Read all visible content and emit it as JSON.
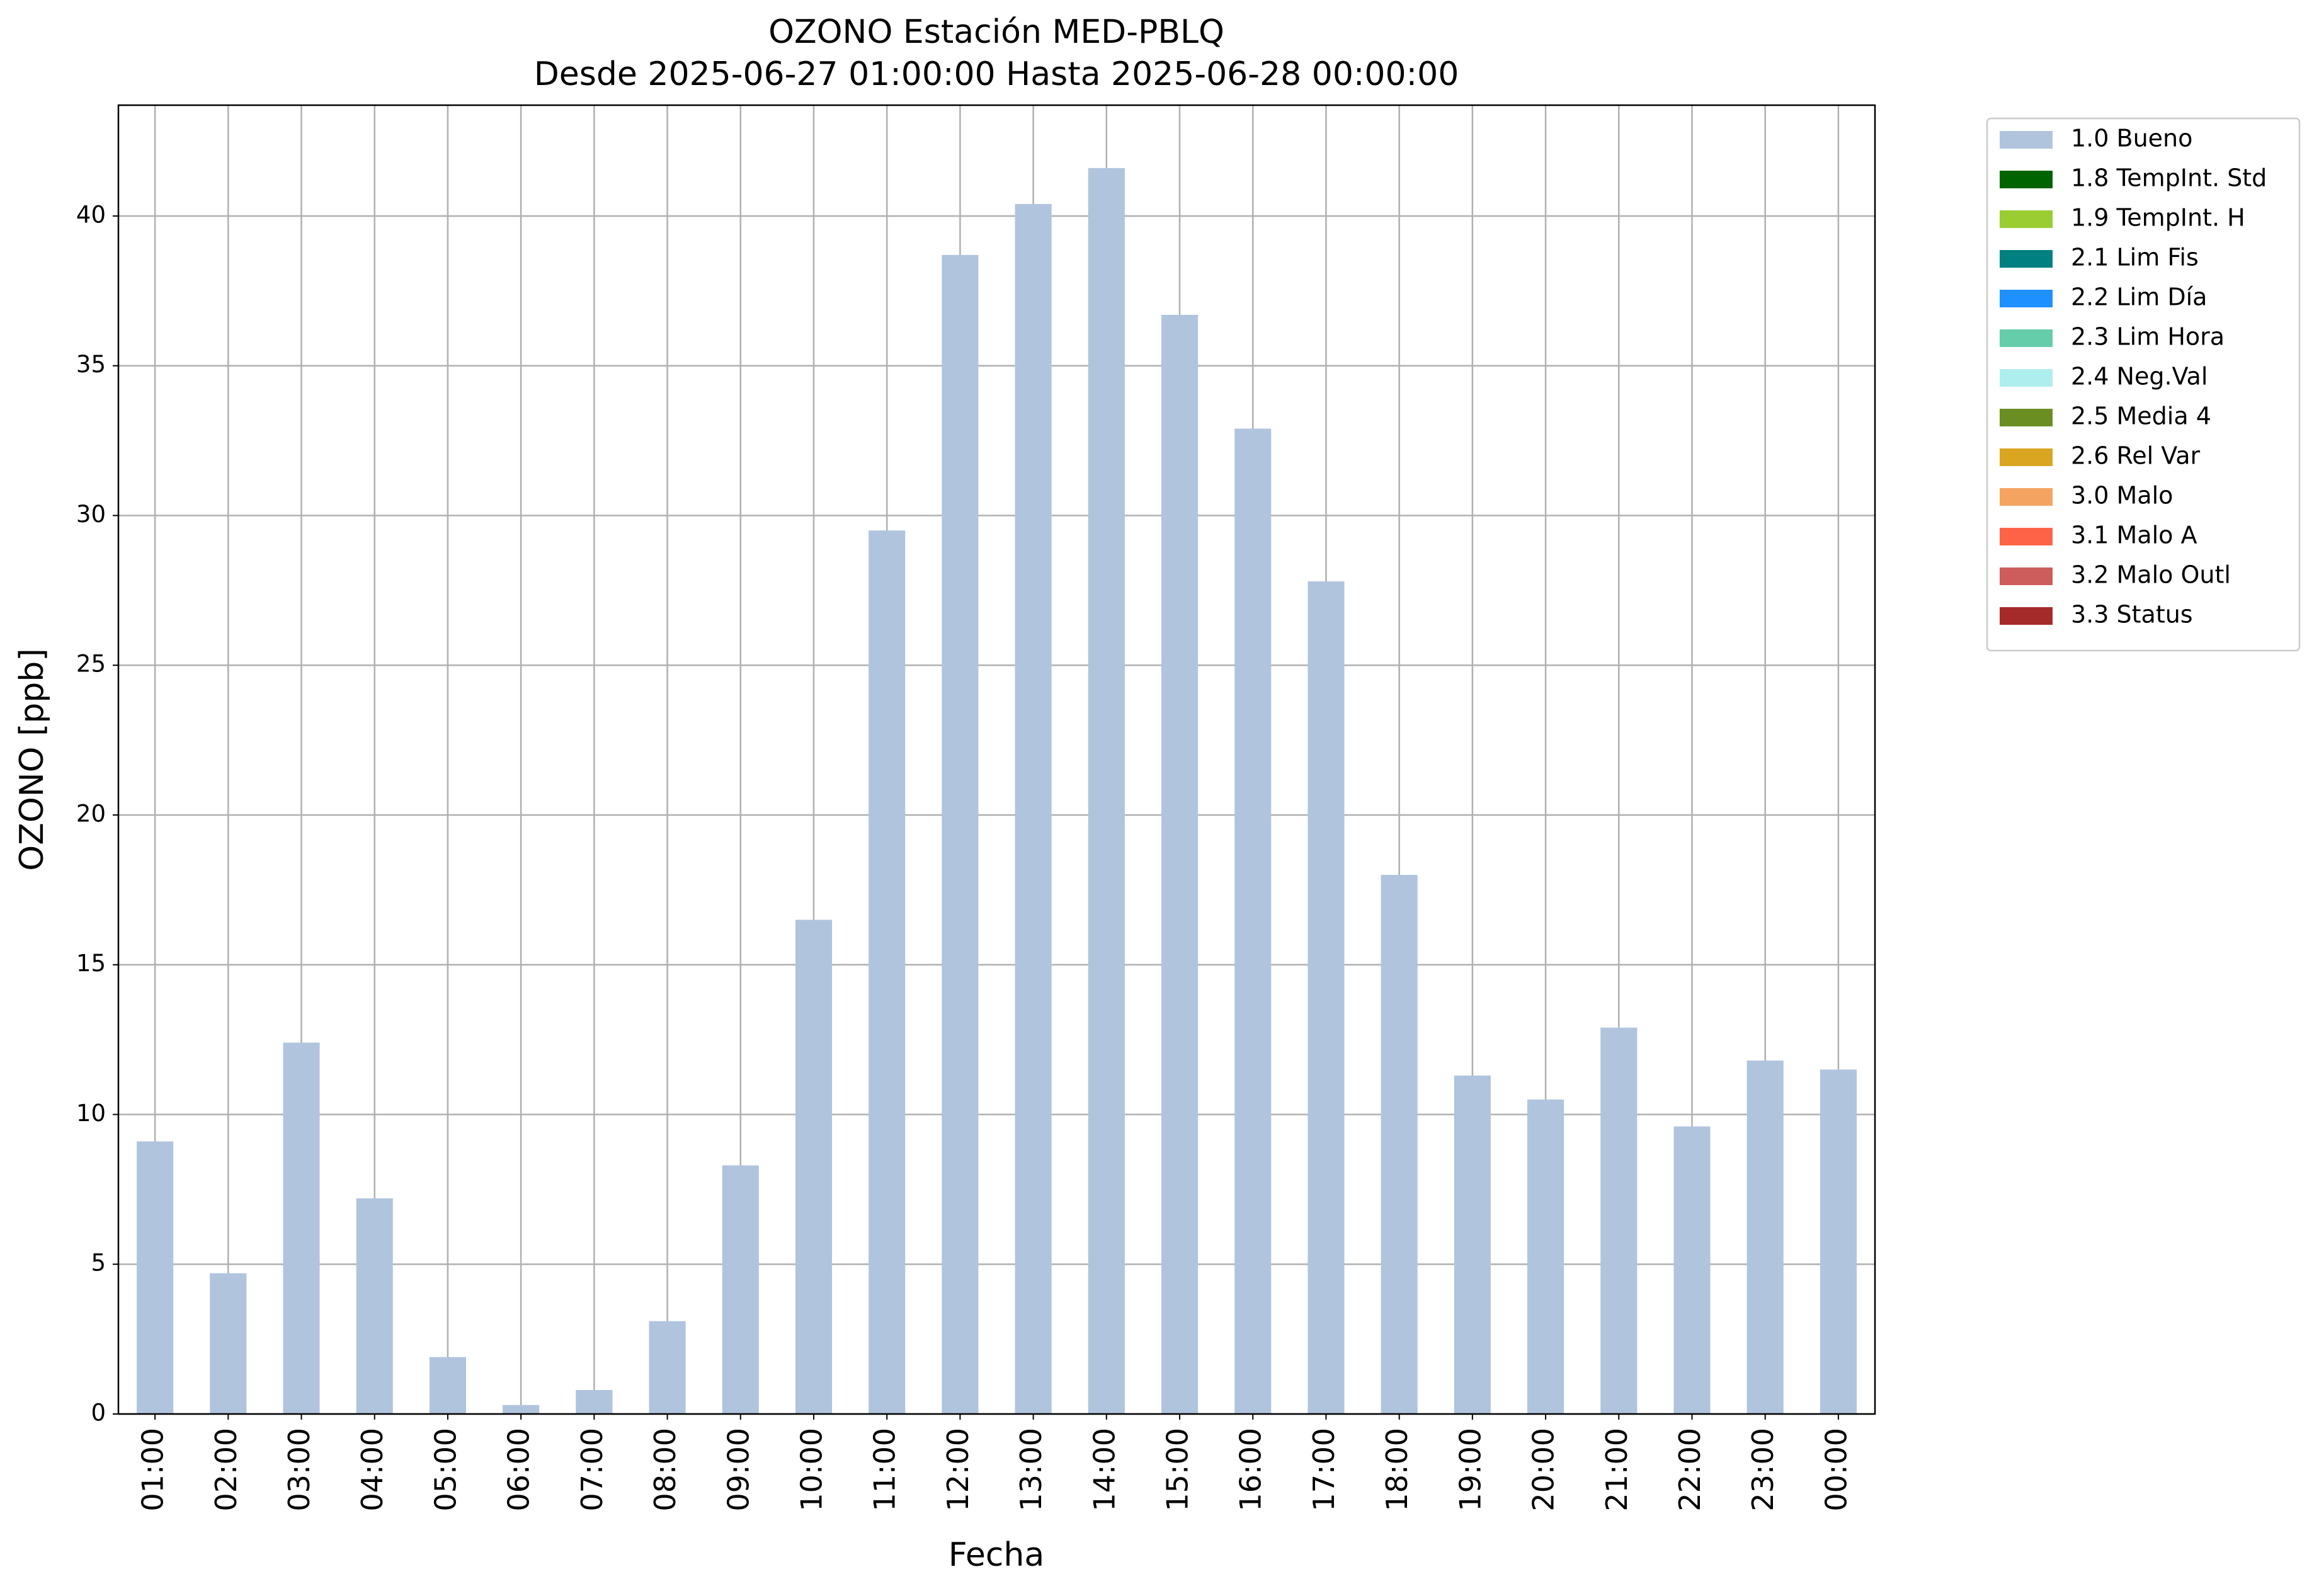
{
  "chart_data": {
    "type": "bar",
    "title": "OZONO Estación MED-PBLQ",
    "subtitle": "Desde 2025-06-27 01:00:00 Hasta 2025-06-28 00:00:00",
    "xlabel": "Fecha",
    "ylabel": "OZONO [ppb]",
    "categories": [
      "01:00",
      "02:00",
      "03:00",
      "04:00",
      "05:00",
      "06:00",
      "07:00",
      "08:00",
      "09:00",
      "10:00",
      "11:00",
      "12:00",
      "13:00",
      "14:00",
      "15:00",
      "16:00",
      "17:00",
      "18:00",
      "19:00",
      "20:00",
      "21:00",
      "22:00",
      "23:00",
      "00:00"
    ],
    "series": [
      {
        "name": "1.0 Bueno",
        "color": "#b0c4de",
        "values": [
          9.1,
          4.7,
          12.4,
          7.2,
          1.9,
          0.3,
          0.8,
          3.1,
          8.3,
          16.5,
          29.5,
          38.7,
          40.4,
          41.6,
          36.7,
          32.9,
          27.8,
          18.0,
          11.3,
          10.5,
          12.9,
          9.6,
          11.8,
          11.5
        ]
      },
      {
        "name": "1.8 TempInt. Std",
        "color": "#006400",
        "values": [
          null,
          null,
          null,
          null,
          null,
          null,
          null,
          null,
          null,
          null,
          null,
          null,
          null,
          null,
          null,
          null,
          null,
          null,
          null,
          null,
          null,
          null,
          null,
          null
        ]
      },
      {
        "name": "1.9 TempInt. H",
        "color": "#9acd32",
        "values": [
          null,
          null,
          null,
          null,
          null,
          null,
          null,
          null,
          null,
          null,
          null,
          null,
          null,
          null,
          null,
          null,
          null,
          null,
          null,
          null,
          null,
          null,
          null,
          null
        ]
      },
      {
        "name": "2.1 Lim Fis",
        "color": "#008080",
        "values": [
          null,
          null,
          null,
          null,
          null,
          null,
          null,
          null,
          null,
          null,
          null,
          null,
          null,
          null,
          null,
          null,
          null,
          null,
          null,
          null,
          null,
          null,
          null,
          null
        ]
      },
      {
        "name": "2.2 Lim Día",
        "color": "#1e90ff",
        "values": [
          null,
          null,
          null,
          null,
          null,
          null,
          null,
          null,
          null,
          null,
          null,
          null,
          null,
          null,
          null,
          null,
          null,
          null,
          null,
          null,
          null,
          null,
          null,
          null
        ]
      },
      {
        "name": "2.3 Lim Hora",
        "color": "#66cdaa",
        "values": [
          null,
          null,
          null,
          null,
          null,
          null,
          null,
          null,
          null,
          null,
          null,
          null,
          null,
          null,
          null,
          null,
          null,
          null,
          null,
          null,
          null,
          null,
          null,
          null
        ]
      },
      {
        "name": "2.4 Neg.Val",
        "color": "#afeeee",
        "values": [
          null,
          null,
          null,
          null,
          null,
          null,
          null,
          null,
          null,
          null,
          null,
          null,
          null,
          null,
          null,
          null,
          null,
          null,
          null,
          null,
          null,
          null,
          null,
          null
        ]
      },
      {
        "name": "2.5 Media 4",
        "color": "#6b8e23",
        "values": [
          null,
          null,
          null,
          null,
          null,
          null,
          null,
          null,
          null,
          null,
          null,
          null,
          null,
          null,
          null,
          null,
          null,
          null,
          null,
          null,
          null,
          null,
          null,
          null
        ]
      },
      {
        "name": "2.6 Rel Var",
        "color": "#daa520",
        "values": [
          null,
          null,
          null,
          null,
          null,
          null,
          null,
          null,
          null,
          null,
          null,
          null,
          null,
          null,
          null,
          null,
          null,
          null,
          null,
          null,
          null,
          null,
          null,
          null
        ]
      },
      {
        "name": "3.0 Malo",
        "color": "#f4a460",
        "values": [
          null,
          null,
          null,
          null,
          null,
          null,
          null,
          null,
          null,
          null,
          null,
          null,
          null,
          null,
          null,
          null,
          null,
          null,
          null,
          null,
          null,
          null,
          null,
          null
        ]
      },
      {
        "name": "3.1 Malo A",
        "color": "#ff6347",
        "values": [
          null,
          null,
          null,
          null,
          null,
          null,
          null,
          null,
          null,
          null,
          null,
          null,
          null,
          null,
          null,
          null,
          null,
          null,
          null,
          null,
          null,
          null,
          null,
          null
        ]
      },
      {
        "name": "3.2 Malo Outl",
        "color": "#cd5c5c",
        "values": [
          null,
          null,
          null,
          null,
          null,
          null,
          null,
          null,
          null,
          null,
          null,
          null,
          null,
          null,
          null,
          null,
          null,
          null,
          null,
          null,
          null,
          null,
          null,
          null
        ]
      },
      {
        "name": "3.3 Status",
        "color": "#a52a2a",
        "values": [
          null,
          null,
          null,
          null,
          null,
          null,
          null,
          null,
          null,
          null,
          null,
          null,
          null,
          null,
          null,
          null,
          null,
          null,
          null,
          null,
          null,
          null,
          null,
          null
        ]
      }
    ],
    "ylim": [
      0,
      43.7
    ],
    "yticks": [
      0,
      5,
      10,
      15,
      20,
      25,
      30,
      35,
      40
    ],
    "grid": true,
    "stacked": true,
    "legend": "outside upper right"
  }
}
